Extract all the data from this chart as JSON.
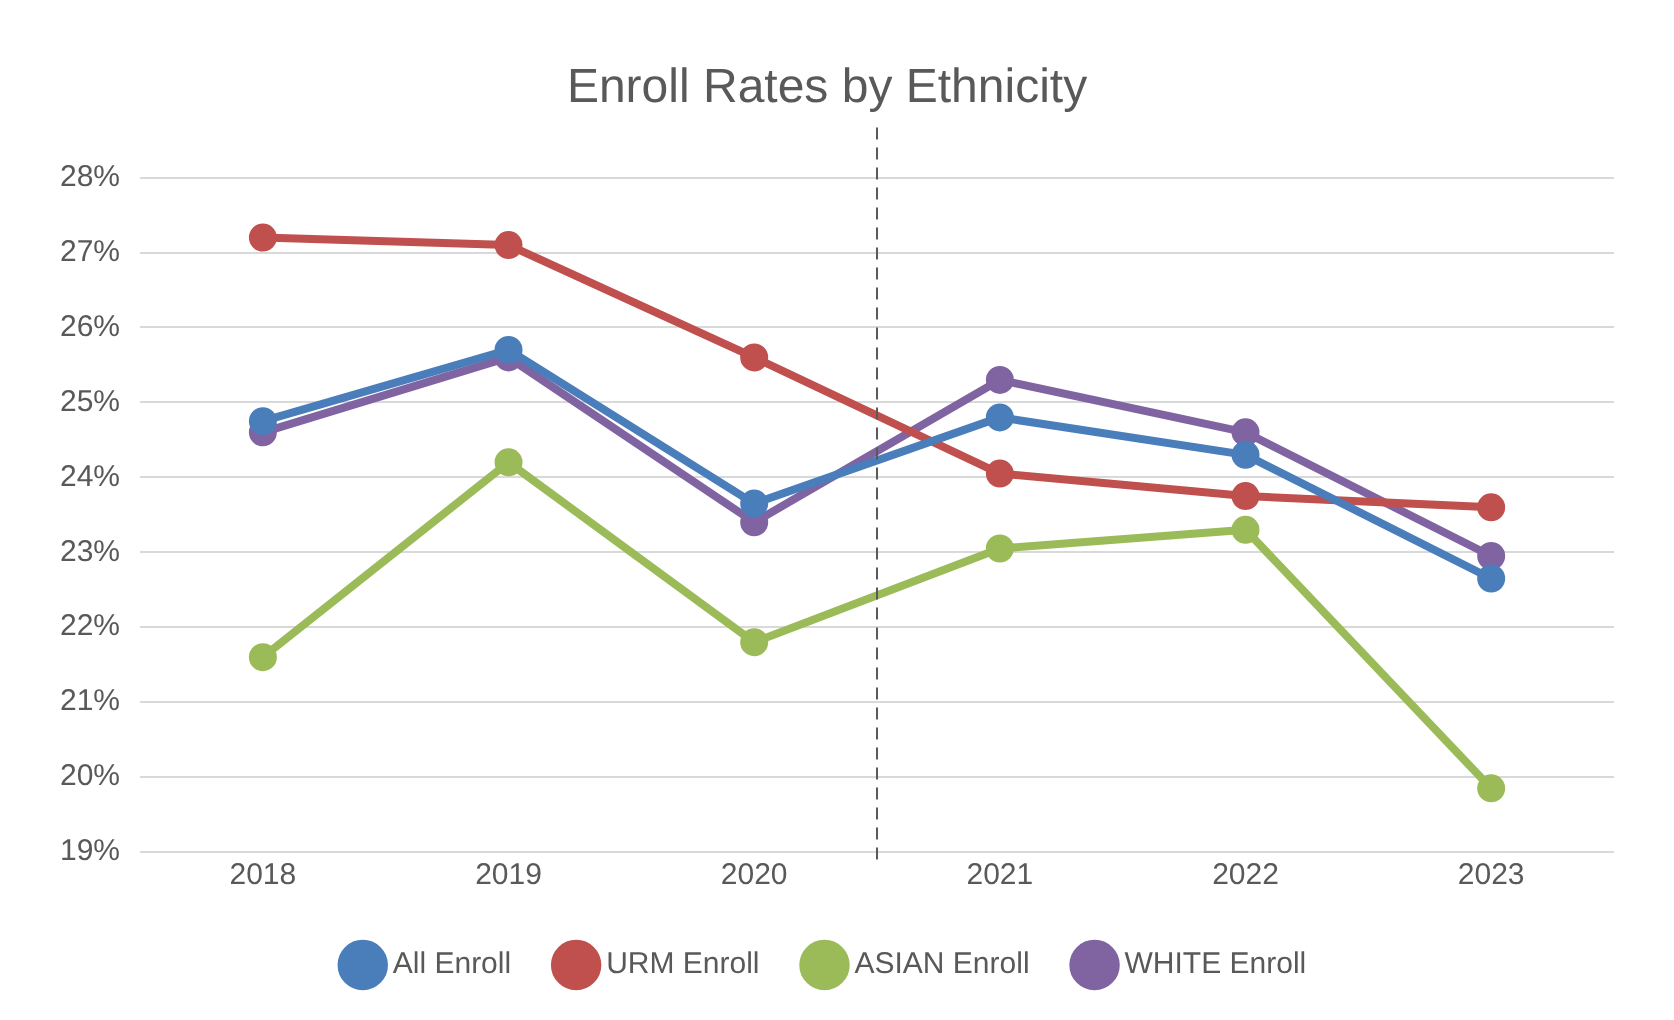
{
  "chart_data": {
    "type": "line",
    "title": "Enroll Rates by Ethnicity",
    "x": [
      2018,
      2019,
      2020,
      2021,
      2022,
      2023
    ],
    "xlim": [
      2017.5,
      2023.5
    ],
    "xticks": [
      2018,
      2019,
      2020,
      2021,
      2022,
      2023
    ],
    "ylim": [
      19,
      28
    ],
    "yticks": [
      {
        "value": 19,
        "label": "19%"
      },
      {
        "value": 20,
        "label": "20%"
      },
      {
        "value": 21,
        "label": "21%"
      },
      {
        "value": 22,
        "label": "22%"
      },
      {
        "value": 23,
        "label": "23%"
      },
      {
        "value": 24,
        "label": "24%"
      },
      {
        "value": 25,
        "label": "25%"
      },
      {
        "value": 26,
        "label": "26%"
      },
      {
        "value": 27,
        "label": "27%"
      },
      {
        "value": 28,
        "label": "28%"
      }
    ],
    "series": [
      {
        "name": "All Enroll",
        "color": "#4a7ebb",
        "values": [
          24.75,
          25.7,
          23.65,
          24.8,
          24.3,
          22.65
        ]
      },
      {
        "name": "URM Enroll",
        "color": "#c0504d",
        "values": [
          27.2,
          27.1,
          25.6,
          24.05,
          23.75,
          23.6
        ]
      },
      {
        "name": "ASIAN Enroll",
        "color": "#9bbb59",
        "values": [
          21.6,
          24.2,
          21.8,
          23.05,
          23.3,
          19.85
        ]
      },
      {
        "name": "WHITE Enroll",
        "color": "#8064a2",
        "values": [
          24.6,
          25.6,
          23.4,
          25.3,
          24.6,
          22.95
        ]
      }
    ],
    "ref_lines": [
      {
        "axis": "x",
        "value": 2020.5,
        "color": "#595959",
        "line_style": "dashed"
      }
    ],
    "grid": "y",
    "legend": "bottom",
    "marker": "circle",
    "line_style": "solid"
  }
}
